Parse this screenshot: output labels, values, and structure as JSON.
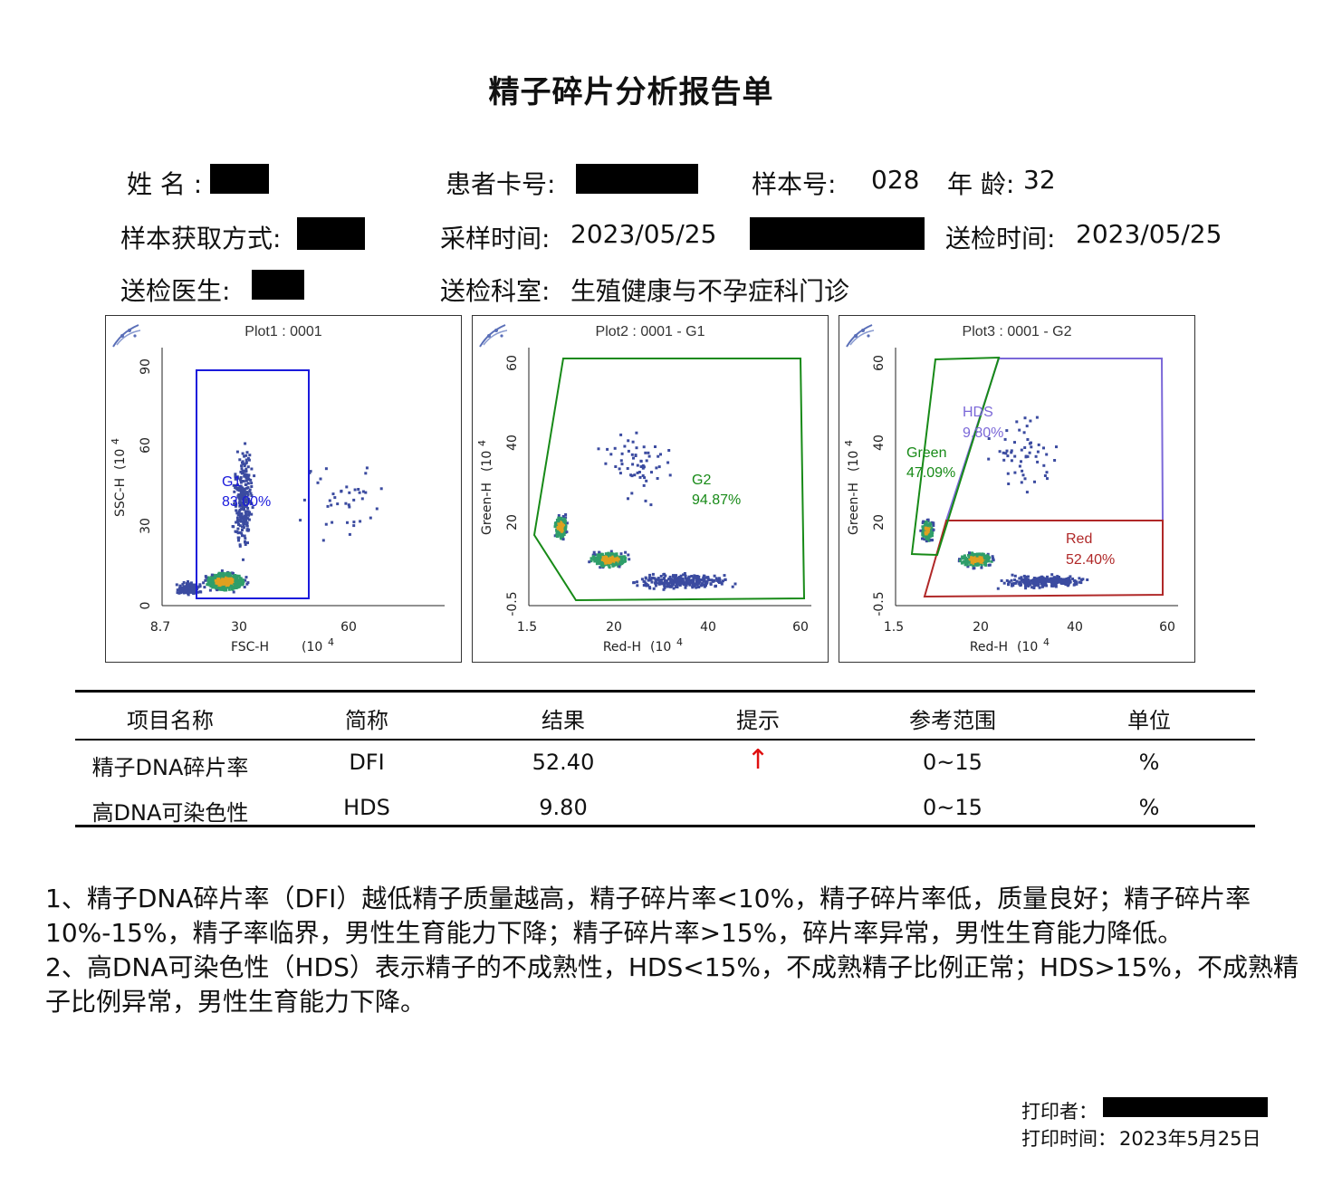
{
  "title": "精子碎片分析报告单",
  "patient": {
    "name_label": "姓 名 :",
    "card_label": "患者卡号:",
    "sample_no_label": "样本号:",
    "sample_no": "028",
    "age_label": "年 龄:",
    "age": "32",
    "method_label": "样本获取方式:",
    "collect_time_label": "采样时间:",
    "collect_time": "2023/05/25",
    "send_time_label": "送检时间:",
    "send_time": "2023/05/25",
    "doctor_label": "送检医生:",
    "dept_label": "送检科室:",
    "dept": "生殖健康与不孕症科门诊"
  },
  "plots": [
    {
      "title": "Plot1 : 0001",
      "xlabel": "FSC-H",
      "ylabel": "SSC-H",
      "unit": "(10",
      "unit_exp": "4",
      "xticks": [
        "8.7",
        "30",
        "60"
      ],
      "yticks": [
        "0",
        "30",
        "60",
        "90"
      ],
      "gates": [
        {
          "name": "G1",
          "pct": "83.00%",
          "color": "#1a1adc"
        }
      ]
    },
    {
      "title": "Plot2 : 0001 - G1",
      "xlabel": "Red-H",
      "ylabel": "Green-H",
      "unit": "(10",
      "unit_exp": "4",
      "xticks": [
        "1.5",
        "20",
        "40",
        "60"
      ],
      "yticks": [
        "-0.5",
        "20",
        "40",
        "60"
      ],
      "gates": [
        {
          "name": "G2",
          "pct": "94.87%",
          "color": "#178a17"
        }
      ]
    },
    {
      "title": "Plot3 : 0001 - G2",
      "xlabel": "Red-H",
      "ylabel": "Green-H",
      "unit": "(10",
      "unit_exp": "4",
      "xticks": [
        "1.5",
        "20",
        "40",
        "60"
      ],
      "yticks": [
        "-0.5",
        "20",
        "40",
        "60"
      ],
      "gates": [
        {
          "name": "HDS",
          "pct": "9.80%",
          "color": "#7b68d8"
        },
        {
          "name": "Green",
          "pct": "47.09%",
          "color": "#178a17"
        },
        {
          "name": "Red",
          "pct": "52.40%",
          "color": "#b02828"
        }
      ]
    }
  ],
  "table": {
    "headers": [
      "项目名称",
      "简称",
      "结果",
      "提示",
      "参考范围",
      "单位"
    ],
    "rows": [
      {
        "name": "精子DNA碎片率",
        "abbr": "DFI",
        "result": "52.40",
        "flag": "↑",
        "range": "0~15",
        "unit": "%"
      },
      {
        "name": "高DNA可染色性",
        "abbr": "HDS",
        "result": "9.80",
        "flag": "",
        "range": "0~15",
        "unit": "%"
      }
    ]
  },
  "notes": [
    "1、精子DNA碎片率（DFI）越低精子质量越高，精子碎片率<10%，精子碎片率低，质量良好；精子碎片率10%-15%，精子率临界，男性生育能力下降；精子碎片率>15%，碎片率异常，男性生育能力降低。",
    "2、高DNA可染色性（HDS）表示精子的不成熟性，HDS<15%，不成熟精子比例正常；HDS>15%，不成熟精子比例异常，男性生育能力下降。"
  ],
  "footer": {
    "printer_label": "打印者：",
    "print_time_label": "打印时间：",
    "print_time": "2023年5月25日"
  },
  "colors": {
    "flag_up": "#e01010",
    "density_low": "#3b4ba0",
    "density_mid": "#2f9e6a",
    "density_high": "#e0a020"
  }
}
